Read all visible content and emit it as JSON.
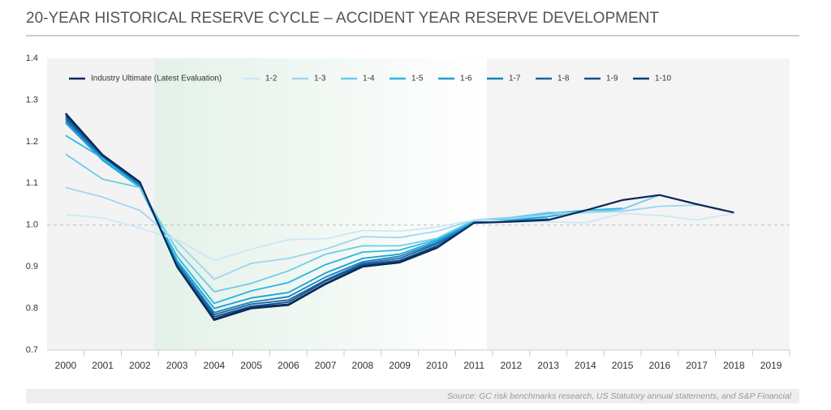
{
  "chart_data": {
    "type": "line",
    "title": "20-YEAR HISTORICAL RESERVE CYCLE – ACCIDENT YEAR RESERVE DEVELOPMENT",
    "source": "Source: GC risk benchmarks research, US Statutory annual statements, and S&P Financial",
    "categories": [
      "2000",
      "2001",
      "2002",
      "2003",
      "2004",
      "2005",
      "2006",
      "2007",
      "2008",
      "2009",
      "2010",
      "2011",
      "2012",
      "2013",
      "2014",
      "2015",
      "2016",
      "2017",
      "2018",
      "2019"
    ],
    "ylim": [
      0.7,
      1.4
    ],
    "yticks": [
      0.7,
      0.8,
      0.9,
      {
        "value": 1,
        "label": "1.0"
      },
      1.1,
      1.2,
      1.3,
      1.4
    ],
    "reference_line": 1,
    "series": [
      {
        "name": "Industry Ultimate (Latest Evaluation)",
        "color": "#0b2858",
        "values": [
          1.268,
          1.168,
          1.103,
          0.9,
          0.772,
          0.8,
          0.808,
          0.858,
          0.9,
          0.91,
          0.945,
          1.005,
          1.008,
          1.012,
          1.035,
          1.06,
          1.072,
          1.05,
          1.03,
          null
        ]
      },
      {
        "name": "1-2",
        "color": "#cde8f5",
        "values": [
          1.025,
          1.017,
          0.993,
          0.965,
          0.915,
          0.942,
          0.965,
          0.967,
          0.987,
          0.985,
          0.995,
          1.012,
          1.008,
          1.008,
          1.005,
          1.028,
          1.023,
          1.012,
          1.028,
          null
        ]
      },
      {
        "name": "1-3",
        "color": "#9fd6ef",
        "values": [
          1.09,
          1.067,
          1.035,
          0.96,
          0.87,
          0.908,
          0.92,
          0.942,
          0.972,
          0.97,
          0.985,
          1.012,
          1.015,
          1.025,
          1.03,
          1.033,
          1.045,
          1.048,
          null,
          null
        ]
      },
      {
        "name": "1-4",
        "color": "#6ccbea",
        "values": [
          1.17,
          1.11,
          1.09,
          0.94,
          0.84,
          0.86,
          0.89,
          0.93,
          0.95,
          0.95,
          0.968,
          1.012,
          1.018,
          1.03,
          1.03,
          1.038,
          1.072,
          null,
          null,
          null
        ]
      },
      {
        "name": "1-5",
        "color": "#2cb6e4",
        "values": [
          1.215,
          1.16,
          1.09,
          0.925,
          0.812,
          0.842,
          0.862,
          0.905,
          0.935,
          0.94,
          0.965,
          1.01,
          1.015,
          1.028,
          1.035,
          1.04,
          null,
          null,
          null,
          null
        ]
      },
      {
        "name": "1-6",
        "color": "#1aa0d6",
        "values": [
          1.245,
          1.155,
          1.09,
          0.915,
          0.8,
          0.825,
          0.838,
          0.885,
          0.92,
          0.93,
          0.962,
          1.008,
          1.012,
          1.02,
          1.035,
          null,
          null,
          null,
          null,
          null
        ]
      },
      {
        "name": "1-7",
        "color": "#1681c0",
        "values": [
          1.25,
          1.16,
          1.095,
          0.91,
          0.79,
          0.815,
          0.828,
          0.875,
          0.912,
          0.925,
          0.958,
          1.005,
          1.01,
          1.015,
          null,
          null,
          null,
          null,
          null,
          null
        ]
      },
      {
        "name": "1-8",
        "color": "#1566a3",
        "values": [
          1.255,
          1.16,
          1.098,
          0.905,
          0.785,
          0.81,
          0.82,
          0.868,
          0.908,
          0.92,
          0.955,
          1.005,
          1.01,
          null,
          null,
          null,
          null,
          null,
          null,
          null
        ]
      },
      {
        "name": "1-9",
        "color": "#134e8a",
        "values": [
          1.26,
          1.165,
          1.1,
          0.902,
          0.78,
          0.805,
          0.815,
          0.865,
          0.905,
          0.915,
          0.95,
          1.005,
          null,
          null,
          null,
          null,
          null,
          null,
          null,
          null
        ]
      },
      {
        "name": "1-10",
        "color": "#0f3a73",
        "values": [
          1.265,
          1.165,
          1.1,
          0.9,
          0.775,
          0.803,
          0.81,
          0.86,
          0.902,
          0.912,
          0.948,
          null,
          null,
          null,
          null,
          null,
          null,
          null,
          null,
          null
        ]
      }
    ]
  }
}
